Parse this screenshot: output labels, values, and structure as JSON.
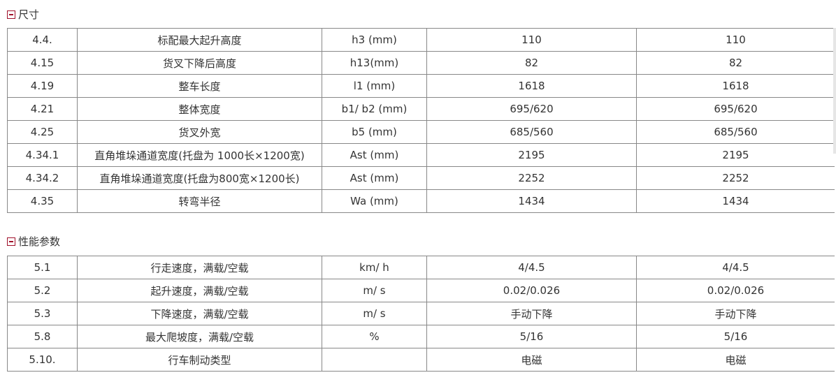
{
  "sections": [
    {
      "title": "尺寸",
      "rows": [
        [
          "4.4.",
          "标配最大起升高度",
          "h3 (mm)",
          "110",
          "110"
        ],
        [
          "4.15",
          "货叉下降后高度",
          "h13(mm)",
          "82",
          "82"
        ],
        [
          "4.19",
          "整车长度",
          "l1 (mm)",
          "1618",
          "1618"
        ],
        [
          "4.21",
          "整体宽度",
          "b1/ b2 (mm)",
          "695/620",
          "695/620"
        ],
        [
          "4.25",
          "货叉外宽",
          "b5 (mm)",
          "685/560",
          "685/560"
        ],
        [
          "4.34.1",
          "直角堆垛通道宽度(托盘为 1000长×1200宽)",
          "Ast (mm)",
          "2195",
          "2195"
        ],
        [
          "4.34.2",
          "直角堆垛通道宽度(托盘为800宽×1200长)",
          "Ast (mm)",
          "2252",
          "2252"
        ],
        [
          "4.35",
          "转弯半径",
          "Wa (mm)",
          "1434",
          "1434"
        ]
      ]
    },
    {
      "title": "性能参数",
      "rows": [
        [
          "5.1",
          "行走速度，满载/空载",
          "km/ h",
          "4/4.5",
          "4/4.5"
        ],
        [
          "5.2",
          "起升速度，满载/空载",
          "m/ s",
          "0.02/0.026",
          "0.02/0.026"
        ],
        [
          "5.3",
          "下降速度，满载/空载",
          "m/ s",
          "手动下降",
          "手动下降"
        ],
        [
          "5.8",
          "最大爬坡度，满载/空载",
          "%",
          "5/16",
          "5/16"
        ],
        [
          "5.10.",
          "行车制动类型",
          "",
          "电磁",
          "电磁"
        ]
      ]
    }
  ],
  "colors": {
    "toggle": "#a0102a",
    "border": "#888888"
  },
  "icons": {
    "collapse": "minus-box-icon"
  }
}
